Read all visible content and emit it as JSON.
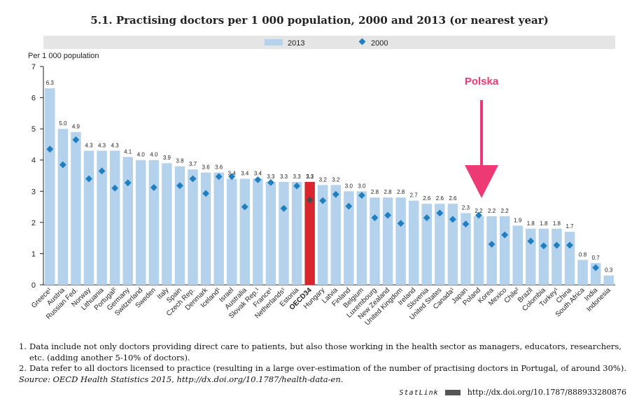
{
  "chart_data": {
    "type": "bar",
    "title": "5.1. Practising doctors per 1 000 population, 2000 and 2013 (or nearest year)",
    "ylabel": "Per 1 000 population",
    "ylim": [
      0,
      7
    ],
    "yticks": [
      0,
      1,
      2,
      3,
      4,
      5,
      6,
      7
    ],
    "grid": false,
    "legend_position": "top",
    "legend": [
      {
        "label": "2013",
        "marker": "bar"
      },
      {
        "label": "2000",
        "marker": "diamond"
      }
    ],
    "categories": [
      "Greece¹",
      "Austria",
      "Russian Fed.",
      "Norway",
      "Lithuania",
      "Portugal²",
      "Germany",
      "Switzerland",
      "Sweden",
      "Italy",
      "Spain",
      "Czech Rep.",
      "Denmark",
      "Iceland¹",
      "Israel",
      "Australia",
      "Slovak Rep.¹",
      "France¹",
      "Netherlands¹",
      "Estonia",
      "OECD34",
      "Hungary",
      "Latvia",
      "Finland",
      "Belgium",
      "Luxembourg",
      "New Zealand",
      "United Kingdom",
      "Ireland",
      "Slovenia",
      "United States",
      "Canada¹",
      "Japan",
      "Poland",
      "Korea",
      "Mexico",
      "Chile²",
      "Brazil",
      "Colombia",
      "Turkey¹",
      "China",
      "South Africa",
      "India",
      "Indonesia"
    ],
    "series": [
      {
        "name": "2013",
        "values": [
          6.3,
          5.0,
          4.9,
          4.3,
          4.3,
          4.3,
          4.1,
          4.0,
          4.0,
          3.9,
          3.8,
          3.7,
          3.6,
          3.6,
          3.4,
          3.4,
          3.4,
          3.3,
          3.3,
          3.3,
          3.3,
          3.2,
          3.2,
          3.0,
          3.0,
          2.8,
          2.8,
          2.8,
          2.7,
          2.6,
          2.6,
          2.6,
          2.3,
          2.2,
          2.2,
          2.2,
          1.9,
          1.8,
          1.8,
          1.8,
          1.7,
          0.8,
          0.7,
          0.3
        ],
        "labels": [
          "6.3",
          "5.0",
          "4.9",
          "4.3",
          "4.3",
          "4.3",
          "4.1",
          "4.0",
          "4.0",
          "3.9",
          "3.8",
          "3.7",
          "3.6",
          "3.6",
          "3.4",
          "3.4",
          "3.4",
          "3.3",
          "3.3",
          "3.3",
          "3.3",
          "3.2",
          "3.2",
          "3.0",
          "3.0",
          "2.8",
          "2.8",
          "2.8",
          "2.7",
          "2.6",
          "2.6",
          "2.6",
          "2.3",
          "2.2",
          "2.2",
          "2.2",
          "1.9",
          "1.8",
          "1.8",
          "1.8",
          "1.7",
          "0.8",
          "0.7",
          "0.3"
        ]
      },
      {
        "name": "2000",
        "values": [
          4.35,
          3.85,
          4.65,
          3.4,
          3.65,
          3.1,
          3.27,
          null,
          3.12,
          null,
          3.18,
          3.4,
          2.93,
          3.47,
          3.47,
          2.5,
          3.37,
          3.28,
          2.45,
          3.17,
          2.72,
          2.7,
          2.9,
          2.52,
          2.87,
          2.15,
          2.23,
          1.97,
          null,
          2.15,
          2.3,
          2.1,
          1.95,
          2.23,
          1.3,
          1.6,
          null,
          1.4,
          1.25,
          1.27,
          1.27,
          null,
          0.55,
          null
        ]
      }
    ],
    "highlight_category": "OECD34",
    "colors": {
      "bar": "#b5d2ec",
      "highlight_bar": "#d7262e",
      "marker": "#1f7fbf",
      "highlight_marker": "#4a4a4a",
      "axis": "#222222",
      "legend_bg": "#e5e5e5",
      "annotation": "#ee3a74"
    },
    "annotation": {
      "text": "Polska",
      "target": "Poland"
    }
  },
  "notes": [
    {
      "num": "1.",
      "text": "Data include not only doctors providing direct care to patients, but also those working in the health sector as managers, educators, researchers, etc. (adding another 5-10% of doctors)."
    },
    {
      "num": "2.",
      "text": "Data refer to all doctors licensed to practice (resulting in a large over-estimation of the number of practising doctors in Portugal, of around 30%)."
    }
  ],
  "source": "Source: OECD Health Statistics 2015, http://dx.doi.org/10.1787/health-data-en.",
  "statlink": {
    "label": "StatLink",
    "url": "http://dx.doi.org/10.1787/888933280876"
  }
}
